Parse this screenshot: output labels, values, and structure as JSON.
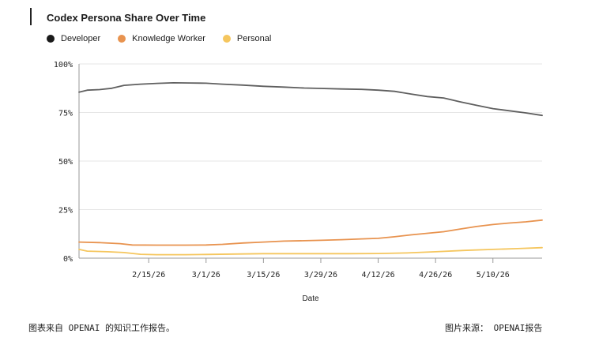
{
  "chart_data": {
    "type": "line",
    "title": "Codex Persona Share Over Time",
    "xlabel": "Date",
    "ylabel": "",
    "ylim": [
      0,
      100
    ],
    "x_range": [
      "2026-01-29",
      "2026-05-22"
    ],
    "y_ticks": [
      "0%",
      "25%",
      "50%",
      "75%",
      "100%"
    ],
    "x_ticks": [
      {
        "date": "2026-02-15",
        "label": "2/15/26"
      },
      {
        "date": "2026-03-01",
        "label": "3/1/26"
      },
      {
        "date": "2026-03-15",
        "label": "3/15/26"
      },
      {
        "date": "2026-03-29",
        "label": "3/29/26"
      },
      {
        "date": "2026-04-12",
        "label": "4/12/26"
      },
      {
        "date": "2026-04-26",
        "label": "4/26/26"
      },
      {
        "date": "2026-05-10",
        "label": "5/10/26"
      }
    ],
    "grid": "horizontal",
    "legend_position": "top-left",
    "series": [
      {
        "name": "Developer",
        "color": "#5f5f5f",
        "points": [
          [
            "2026-01-29",
            85.5
          ],
          [
            "2026-01-31",
            86.5
          ],
          [
            "2026-02-03",
            86.8
          ],
          [
            "2026-02-06",
            87.5
          ],
          [
            "2026-02-09",
            89.0
          ],
          [
            "2026-02-13",
            89.6
          ],
          [
            "2026-02-17",
            90.0
          ],
          [
            "2026-02-21",
            90.3
          ],
          [
            "2026-02-25",
            90.2
          ],
          [
            "2026-03-01",
            90.1
          ],
          [
            "2026-03-05",
            89.6
          ],
          [
            "2026-03-10",
            89.1
          ],
          [
            "2026-03-15",
            88.5
          ],
          [
            "2026-03-20",
            88.1
          ],
          [
            "2026-03-25",
            87.6
          ],
          [
            "2026-03-29",
            87.4
          ],
          [
            "2026-04-03",
            87.1
          ],
          [
            "2026-04-08",
            86.9
          ],
          [
            "2026-04-12",
            86.5
          ],
          [
            "2026-04-16",
            85.9
          ],
          [
            "2026-04-20",
            84.5
          ],
          [
            "2026-04-24",
            83.2
          ],
          [
            "2026-04-28",
            82.5
          ],
          [
            "2026-05-02",
            80.5
          ],
          [
            "2026-05-06",
            78.7
          ],
          [
            "2026-05-10",
            77.0
          ],
          [
            "2026-05-14",
            75.9
          ],
          [
            "2026-05-18",
            74.8
          ],
          [
            "2026-05-22",
            73.5
          ]
        ]
      },
      {
        "name": "Knowledge Worker",
        "color": "#e8934f",
        "points": [
          [
            "2026-01-29",
            8.3
          ],
          [
            "2026-02-03",
            8.0
          ],
          [
            "2026-02-08",
            7.5
          ],
          [
            "2026-02-11",
            6.8
          ],
          [
            "2026-02-17",
            6.7
          ],
          [
            "2026-02-24",
            6.7
          ],
          [
            "2026-03-01",
            6.8
          ],
          [
            "2026-03-05",
            7.1
          ],
          [
            "2026-03-10",
            7.8
          ],
          [
            "2026-03-15",
            8.3
          ],
          [
            "2026-03-20",
            8.8
          ],
          [
            "2026-03-25",
            9.0
          ],
          [
            "2026-03-29",
            9.2
          ],
          [
            "2026-04-03",
            9.5
          ],
          [
            "2026-04-08",
            9.9
          ],
          [
            "2026-04-12",
            10.2
          ],
          [
            "2026-04-16",
            11.0
          ],
          [
            "2026-04-20",
            12.0
          ],
          [
            "2026-04-24",
            12.8
          ],
          [
            "2026-04-28",
            13.6
          ],
          [
            "2026-05-02",
            15.0
          ],
          [
            "2026-05-06",
            16.3
          ],
          [
            "2026-05-10",
            17.3
          ],
          [
            "2026-05-14",
            18.1
          ],
          [
            "2026-05-18",
            18.7
          ],
          [
            "2026-05-22",
            19.6
          ]
        ]
      },
      {
        "name": "Personal",
        "color": "#f5c65e",
        "points": [
          [
            "2026-01-29",
            4.5
          ],
          [
            "2026-01-31",
            3.6
          ],
          [
            "2026-02-05",
            3.3
          ],
          [
            "2026-02-09",
            2.9
          ],
          [
            "2026-02-13",
            2.0
          ],
          [
            "2026-02-17",
            1.8
          ],
          [
            "2026-02-24",
            1.8
          ],
          [
            "2026-03-01",
            1.9
          ],
          [
            "2026-03-08",
            2.1
          ],
          [
            "2026-03-15",
            2.3
          ],
          [
            "2026-03-22",
            2.3
          ],
          [
            "2026-03-29",
            2.3
          ],
          [
            "2026-04-05",
            2.3
          ],
          [
            "2026-04-12",
            2.4
          ],
          [
            "2026-04-19",
            2.7
          ],
          [
            "2026-04-26",
            3.3
          ],
          [
            "2026-05-03",
            4.0
          ],
          [
            "2026-05-10",
            4.5
          ],
          [
            "2026-05-16",
            4.9
          ],
          [
            "2026-05-22",
            5.4
          ]
        ]
      }
    ]
  },
  "captions": {
    "source_left": "图表来自 OPENAI 的知识工作报告。",
    "source_right": "图片来源： OPENAI报告"
  }
}
